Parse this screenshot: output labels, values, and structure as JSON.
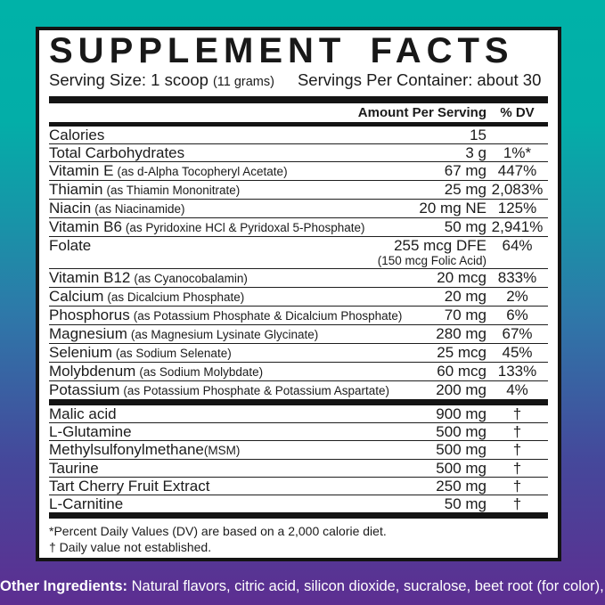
{
  "colors": {
    "gradient_top": "#00b2a8",
    "gradient_middle": "#2e78a9",
    "gradient_bottom": "#5d2e91",
    "panel_background": "#ffffff",
    "panel_border": "#141414",
    "text": "#1b1b1b",
    "bottom_text": "#ffffff"
  },
  "label": {
    "title": "SUPPLEMENT FACTS",
    "serving": {
      "size_label": "Serving Size: 1 scoop",
      "size_note": "(11 grams)",
      "container_label": "Servings Per Container:",
      "container_value": "about 30"
    },
    "columns": {
      "amount": "Amount Per Serving",
      "dv": "% DV"
    },
    "nutrients": [
      {
        "name": "Calories",
        "note": "",
        "amount": "15",
        "dv": ""
      },
      {
        "name": "Total Carbohydrates",
        "note": "",
        "amount": "3 g",
        "dv": "1%*"
      },
      {
        "name": "Vitamin E",
        "note": "(as d-Alpha Tocopheryl Acetate)",
        "amount": "67 mg",
        "dv": "447%"
      },
      {
        "name": "Thiamin",
        "note": "(as Thiamin Mononitrate)",
        "amount": "25 mg",
        "dv": "2,083%"
      },
      {
        "name": "Niacin",
        "note": "(as Niacinamide)",
        "amount": "20 mg NE",
        "dv": "125%"
      },
      {
        "name": "Vitamin B6",
        "note": "(as Pyridoxine HCl & Pyridoxal 5-Phosphate)",
        "amount": "50 mg",
        "dv": "2,941%"
      },
      {
        "name": "Folate",
        "note": "",
        "amount": "255 mcg DFE",
        "amount_note": "(150 mcg Folic Acid)",
        "dv": "64%"
      },
      {
        "name": "Vitamin B12",
        "note": "(as Cyanocobalamin)",
        "amount": "20 mcg",
        "dv": "833%"
      },
      {
        "name": "Calcium",
        "note": "(as Dicalcium Phosphate)",
        "amount": "20 mg",
        "dv": "2%"
      },
      {
        "name": "Phosphorus",
        "note": "(as Potassium Phosphate & Dicalcium Phosphate)",
        "amount": "70 mg",
        "dv": "6%"
      },
      {
        "name": "Magnesium",
        "note": "(as Magnesium Lysinate Glycinate)",
        "amount": "280 mg",
        "dv": "67%"
      },
      {
        "name": "Selenium",
        "note": "(as Sodium Selenate)",
        "amount": "25 mcg",
        "dv": "45%"
      },
      {
        "name": "Molybdenum",
        "note": "(as Sodium Molybdate)",
        "amount": "60 mcg",
        "dv": "133%"
      },
      {
        "name": "Potassium",
        "note": "(as Potassium Phosphate & Potassium Aspartate)",
        "amount": "200 mg",
        "dv": "4%"
      }
    ],
    "other_nutrients": [
      {
        "name": "Malic acid",
        "note": "",
        "amount": "900 mg",
        "dv": "†"
      },
      {
        "name": "L-Glutamine",
        "note": "",
        "amount": "500 mg",
        "dv": "†"
      },
      {
        "name": "Methylsulfonylmethane",
        "note": "(MSM)",
        "nospace": true,
        "amount": "500 mg",
        "dv": "†"
      },
      {
        "name": "Taurine",
        "note": "",
        "amount": "500 mg",
        "dv": "†"
      },
      {
        "name": "Tart Cherry Fruit Extract",
        "note": "",
        "amount": "250 mg",
        "dv": "†"
      },
      {
        "name": "L-Carnitine",
        "note": "",
        "amount": "50 mg",
        "dv": "†"
      }
    ],
    "footnotes": [
      "*Percent Daily Values (DV) are based on a 2,000 calorie diet.",
      "† Daily value not established."
    ]
  },
  "other_ingredients": {
    "label": "Other Ingredients:",
    "text": "Natural flavors, citric acid, silicon dioxide, sucralose, beet root (for color), inulin."
  }
}
